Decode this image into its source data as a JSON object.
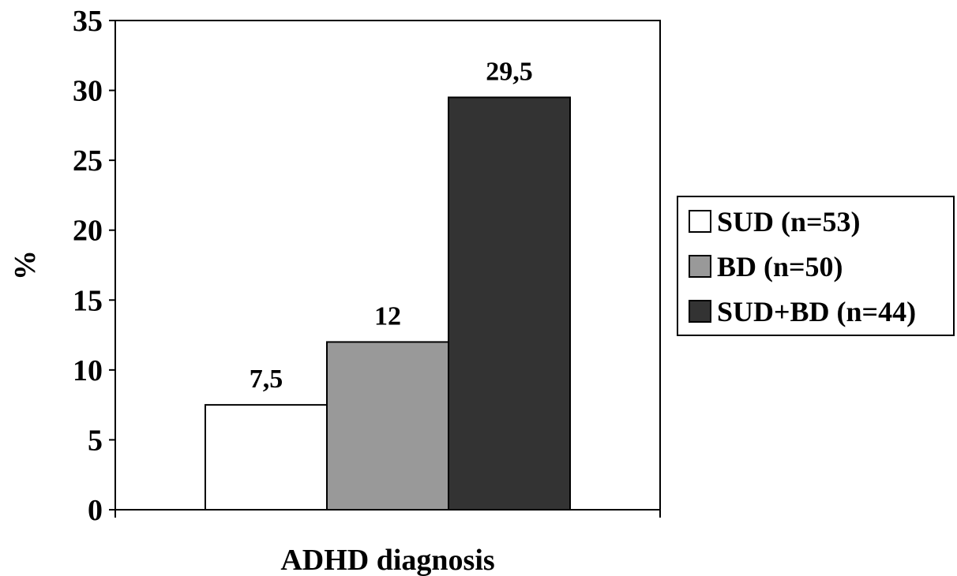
{
  "chart_data": {
    "type": "bar",
    "title": "",
    "xlabel": "ADHD diagnosis",
    "ylabel": "%",
    "ylim": [
      0,
      35
    ],
    "yticks": [
      0,
      5,
      10,
      15,
      20,
      25,
      30,
      35
    ],
    "grid": false,
    "legend_position": "right",
    "categories": [
      "ADHD diagnosis"
    ],
    "series": [
      {
        "name": "SUD (n=53)",
        "values": [
          7.5
        ],
        "data_label": "7,5",
        "color": "#ffffff"
      },
      {
        "name": "BD (n=50)",
        "values": [
          12
        ],
        "data_label": "12",
        "color": "#999999"
      },
      {
        "name": "SUD+BD (n=44)",
        "values": [
          29.5
        ],
        "data_label": "29,5",
        "color": "#333333"
      }
    ]
  }
}
